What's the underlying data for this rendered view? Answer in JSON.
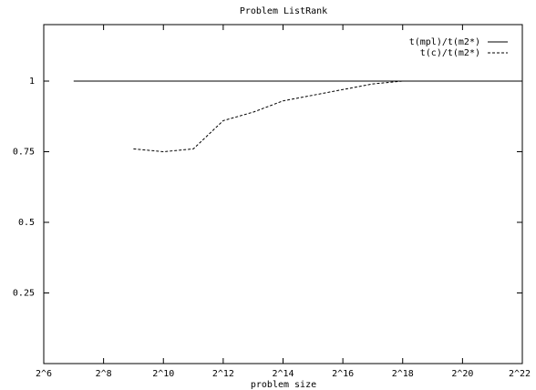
{
  "chart_data": {
    "type": "line",
    "title": "Problem ListRank",
    "xlabel": "problem size",
    "ylabel": "",
    "x_scale": "log2",
    "xlim_exponent": [
      6,
      22
    ],
    "ylim": [
      0.0,
      1.2
    ],
    "x_tick_exponents": [
      6,
      8,
      10,
      12,
      14,
      16,
      18,
      20,
      22
    ],
    "x_tick_labels": [
      "2^6",
      "2^8",
      "2^10",
      "2^12",
      "2^14",
      "2^16",
      "2^18",
      "2^20",
      "2^22"
    ],
    "y_ticks": [
      0.25,
      0.5,
      0.75,
      1.0
    ],
    "y_tick_labels": [
      "0.25",
      "0.5",
      "0.75",
      "1"
    ],
    "grid": false,
    "legend_position": "top-right",
    "series": [
      {
        "name": "t(mpl)/t(m2*)",
        "style": "solid",
        "x_exponent": [
          7,
          22
        ],
        "y": [
          1.0,
          1.0
        ]
      },
      {
        "name": "t(c)/t(m2*)",
        "style": "dashed",
        "x_exponent": [
          9,
          10,
          11,
          12,
          13,
          14,
          15,
          16,
          17,
          18
        ],
        "y": [
          0.76,
          0.75,
          0.76,
          0.86,
          0.89,
          0.93,
          0.95,
          0.97,
          0.99,
          1.0
        ]
      }
    ]
  }
}
